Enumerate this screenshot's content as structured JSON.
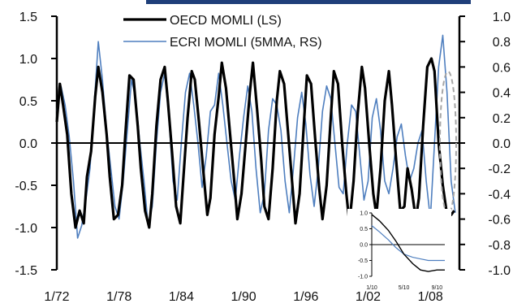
{
  "colors": {
    "oecd": "#000000",
    "ecri": "#4f7fbf",
    "header": "#1f3f7a",
    "ellipse": "#a6a6a6"
  },
  "chart_data": [
    {
      "type": "line",
      "legend_position": "top-center",
      "grid": false,
      "x_tick_labels": [
        "1/72",
        "1/78",
        "1/84",
        "1/90",
        "1/96",
        "1/02",
        "1/08"
      ],
      "x_range": [
        1972.0,
        2010.8
      ],
      "y_left": {
        "range": [
          -1.5,
          1.5
        ],
        "ticks": [
          -1.5,
          -1.0,
          -0.5,
          0.0,
          0.5,
          1.0,
          1.5
        ],
        "tick_labels": [
          "-1.5",
          "-1.0",
          "-0.5",
          "0.0",
          "0.5",
          "1.0",
          "1.5"
        ]
      },
      "y_right": {
        "range": [
          -1.0,
          1.0
        ],
        "ticks": [
          -1.0,
          -0.8,
          -0.6,
          -0.4,
          -0.2,
          0.0,
          0.2,
          0.4,
          0.6,
          0.8,
          1.0
        ],
        "tick_labels": [
          "-1.0",
          "-0.8",
          "-0.6",
          "-0.4",
          "-0.2",
          "0.0",
          "0.2",
          "0.4",
          "0.6",
          "0.8",
          "1.0"
        ]
      },
      "series": [
        {
          "name": "OECD MOMLI (LS)",
          "axis": "left",
          "x": [
            1972.0,
            1972.3,
            1972.6,
            1973.0,
            1973.4,
            1973.8,
            1974.2,
            1974.6,
            1974.9,
            1975.3,
            1975.7,
            1976.0,
            1976.4,
            1976.8,
            1977.1,
            1977.5,
            1977.9,
            1978.3,
            1978.6,
            1979.0,
            1979.4,
            1979.8,
            1980.1,
            1980.5,
            1980.9,
            1981.2,
            1981.6,
            1982.0,
            1982.4,
            1982.7,
            1983.1,
            1983.5,
            1983.9,
            1984.2,
            1984.6,
            1985.0,
            1985.3,
            1985.7,
            1986.1,
            1986.5,
            1986.8,
            1987.2,
            1987.6,
            1987.9,
            1988.3,
            1988.7,
            1989.1,
            1989.4,
            1989.8,
            1990.2,
            1990.6,
            1990.9,
            1991.3,
            1991.7,
            1992.0,
            1992.4,
            1992.8,
            1993.2,
            1993.5,
            1993.9,
            1994.3,
            1994.7,
            1995.0,
            1995.4,
            1995.8,
            1996.1,
            1996.5,
            1996.9,
            1997.3,
            1997.6,
            1998.0,
            1998.4,
            1998.7,
            1999.1,
            1999.5,
            1999.9,
            2000.2,
            2000.6,
            2001.0,
            2001.4,
            2001.7,
            2002.1,
            2002.5,
            2002.8,
            2003.2,
            2003.6,
            2004.0,
            2004.3,
            2004.7,
            2005.1,
            2005.5,
            2005.8,
            2006.2,
            2006.6,
            2006.9,
            2007.3,
            2007.7,
            2008.1,
            2008.4,
            2008.8,
            2009.2,
            2009.6,
            2010.0,
            2010.3
          ],
          "y": [
            0.25,
            0.7,
            0.45,
            0.1,
            -0.6,
            -1.0,
            -0.8,
            -0.95,
            -0.4,
            -0.1,
            0.55,
            0.9,
            0.6,
            0.1,
            -0.4,
            -0.9,
            -0.85,
            -0.5,
            0.1,
            0.8,
            0.75,
            0.2,
            -0.3,
            -0.8,
            -1.0,
            -0.6,
            0.2,
            0.75,
            0.9,
            0.5,
            -0.1,
            -0.75,
            -0.95,
            -0.4,
            0.3,
            0.85,
            0.75,
            0.25,
            -0.3,
            -0.85,
            -0.65,
            0.1,
            0.55,
            0.95,
            0.65,
            0.1,
            -0.45,
            -0.9,
            -0.6,
            0.0,
            0.6,
            0.95,
            0.4,
            -0.2,
            -0.75,
            -0.9,
            -0.3,
            0.5,
            0.85,
            0.7,
            0.1,
            -0.5,
            -0.95,
            -0.6,
            0.2,
            0.8,
            0.7,
            0.05,
            -0.55,
            -0.9,
            -0.5,
            0.3,
            0.85,
            0.7,
            0.0,
            -0.6,
            -0.95,
            -0.45,
            0.35,
            0.9,
            0.65,
            0.0,
            -0.6,
            -0.85,
            -0.3,
            0.5,
            0.85,
            0.45,
            -0.2,
            -0.8,
            -0.75,
            -0.3,
            -0.55,
            -0.9,
            -0.65,
            0.2,
            0.9,
            1.0,
            0.85,
            0.0,
            -0.5,
            -0.85,
            -0.85,
            -0.8
          ]
        },
        {
          "name": "ECRI MOMLI (5MMA, RS)",
          "axis": "right",
          "x": [
            1972.0,
            1972.4,
            1972.8,
            1973.2,
            1973.6,
            1974.0,
            1974.4,
            1974.8,
            1975.2,
            1975.6,
            1976.0,
            1976.4,
            1976.8,
            1977.2,
            1977.6,
            1978.0,
            1978.4,
            1978.8,
            1979.2,
            1979.6,
            1980.0,
            1980.4,
            1980.8,
            1981.2,
            1981.6,
            1982.0,
            1982.4,
            1982.8,
            1983.2,
            1983.6,
            1984.0,
            1984.4,
            1984.8,
            1985.2,
            1985.6,
            1986.0,
            1986.4,
            1986.8,
            1987.2,
            1987.6,
            1988.0,
            1988.4,
            1988.8,
            1989.2,
            1989.6,
            1990.0,
            1990.4,
            1990.8,
            1991.2,
            1991.6,
            1992.0,
            1992.4,
            1992.8,
            1993.2,
            1993.6,
            1994.0,
            1994.4,
            1994.8,
            1995.2,
            1995.6,
            1996.0,
            1996.4,
            1996.8,
            1997.2,
            1997.6,
            1998.0,
            1998.4,
            1998.8,
            1999.2,
            1999.6,
            2000.0,
            2000.4,
            2000.8,
            2001.2,
            2001.6,
            2002.0,
            2002.4,
            2002.8,
            2003.2,
            2003.6,
            2004.0,
            2004.4,
            2004.8,
            2005.2,
            2005.6,
            2006.0,
            2006.4,
            2006.8,
            2007.2,
            2007.6,
            2008.0,
            2008.4,
            2008.8,
            2009.2,
            2009.6,
            2010.0,
            2010.4
          ],
          "y": [
            0.25,
            0.45,
            0.3,
            0.05,
            -0.3,
            -0.75,
            -0.65,
            -0.45,
            -0.2,
            0.3,
            0.8,
            0.5,
            0.1,
            -0.2,
            -0.5,
            -0.6,
            -0.3,
            0.1,
            0.5,
            0.35,
            0.0,
            -0.3,
            -0.65,
            -0.5,
            0.0,
            0.4,
            0.55,
            0.2,
            -0.3,
            -0.45,
            0.0,
            0.4,
            0.55,
            0.3,
            0.0,
            -0.35,
            -0.1,
            0.25,
            0.3,
            0.55,
            0.3,
            0.0,
            -0.3,
            -0.45,
            -0.1,
            0.2,
            0.45,
            0.25,
            -0.2,
            -0.55,
            -0.4,
            0.1,
            0.35,
            0.3,
            0.1,
            -0.3,
            -0.55,
            -0.2,
            0.2,
            0.4,
            0.15,
            -0.25,
            -0.5,
            -0.2,
            0.25,
            0.45,
            0.35,
            0.0,
            -0.35,
            -0.4,
            0.0,
            0.3,
            0.25,
            -0.1,
            -0.45,
            -0.3,
            0.2,
            0.35,
            0.1,
            -0.3,
            -0.4,
            -0.2,
            0.05,
            0.15,
            -0.1,
            -0.3,
            -0.2,
            0.0,
            0.1,
            -0.3,
            -0.6,
            0.0,
            0.6,
            0.85,
            0.4,
            -0.3,
            -0.55
          ]
        }
      ],
      "annotations": [
        "dashed grey ellipse highlighting the 2009-2010 turn of both series"
      ]
    },
    {
      "type": "line",
      "placement": "inset, bottom-right",
      "x_tick_labels": [
        "1/10",
        "5/10",
        "9/10"
      ],
      "x_range": [
        2010.0,
        2010.75
      ],
      "y": {
        "range": [
          -1.0,
          1.0
        ],
        "ticks": [
          -1.0,
          -0.5,
          0.0,
          0.5,
          1.0
        ],
        "tick_labels": [
          "-1.0",
          "-0.5",
          "0.0",
          "0.5",
          "1.0"
        ]
      },
      "series": [
        {
          "name": "OECD MOMLI",
          "x": [
            2010.0,
            2010.08,
            2010.17,
            2010.25,
            2010.33,
            2010.42,
            2010.5,
            2010.58,
            2010.67,
            2010.75
          ],
          "y": [
            0.95,
            0.75,
            0.45,
            0.1,
            -0.3,
            -0.6,
            -0.8,
            -0.85,
            -0.8,
            -0.8
          ]
        },
        {
          "name": "ECRI MOMLI",
          "x": [
            2010.0,
            2010.08,
            2010.17,
            2010.25,
            2010.33,
            2010.42,
            2010.5,
            2010.58,
            2010.67,
            2010.75
          ],
          "y": [
            0.6,
            0.4,
            0.15,
            -0.1,
            -0.3,
            -0.4,
            -0.45,
            -0.5,
            -0.5,
            -0.5
          ]
        }
      ]
    }
  ]
}
